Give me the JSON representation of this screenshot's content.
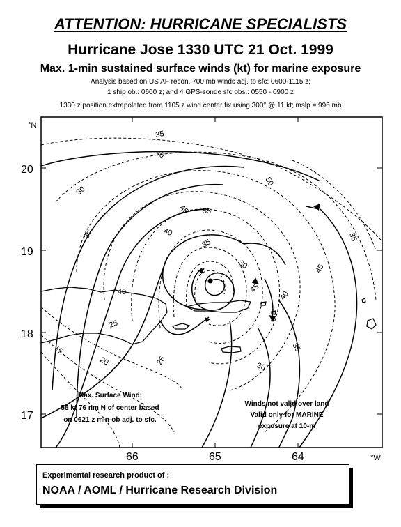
{
  "header": {
    "attention": "ATTENTION: HURRICANE SPECIALISTS",
    "title": "Hurricane Jose 1330 UTC 21 Oct. 1999",
    "subtitle": "Max. 1-min sustained surface winds (kt) for marine exposure",
    "note1": "Analysis based on US AF recon. 700 mb winds adj. to sfc: 0600-1115 z;",
    "note2": "1 ship ob.: 0600 z; and 4 GPS-sonde sfc obs.: 0550 - 0900 z",
    "note3": "1330 z position extrapolated from  1105 z wind center fix using  300° @ 11 kt; mslp = 996 mb"
  },
  "map": {
    "lat_axis": {
      "unit": "°N",
      "ticks": [
        "20",
        "19",
        "18",
        "17"
      ]
    },
    "lon_axis": {
      "unit": "°W",
      "ticks": [
        "66",
        "65",
        "64"
      ]
    },
    "contour_labels": [
      "35",
      "40",
      "30",
      "50",
      "55",
      "45",
      "35",
      "40",
      "35",
      "30",
      "45",
      "40",
      "25",
      "35",
      "15",
      "20",
      "25",
      "30",
      "35",
      "40",
      "45"
    ],
    "max_wind_note": {
      "line1": "Max. Surface Wind:",
      "line2": "55 kt 76 nm N of center based",
      "line3": "on 0621 z min-ob adj. to sfc."
    },
    "validity_note": {
      "line1": "Winds not valid over land",
      "line2_pre": "Valid ",
      "line2_em": "only",
      "line2_post": " for MARINE",
      "line3": "exposure at 10-m"
    }
  },
  "footer": {
    "line1": "Experimental research product of :",
    "line2": "NOAA / AOML / Hurricane Research Division"
  }
}
